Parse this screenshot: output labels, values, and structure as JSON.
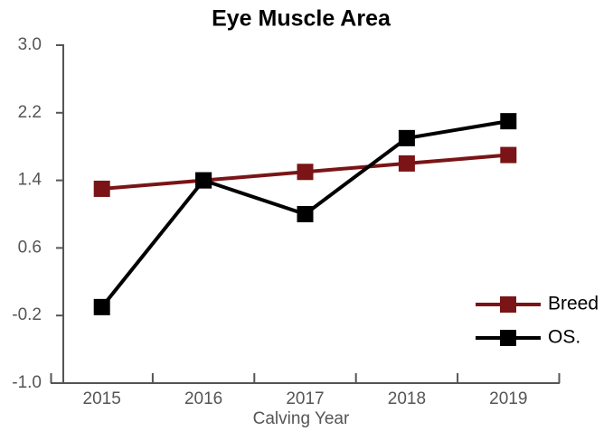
{
  "chart_data": {
    "type": "line",
    "title": "Eye Muscle Area",
    "xlabel": "Calving Year",
    "categories": [
      "2015",
      "2016",
      "2017",
      "2018",
      "2019"
    ],
    "series": [
      {
        "name": "Breed",
        "color": "#7a1416",
        "values": [
          1.3,
          1.4,
          1.5,
          1.6,
          1.7
        ]
      },
      {
        "name": "OS.",
        "color": "#000000",
        "values": [
          -0.1,
          1.4,
          1.0,
          1.9,
          2.1
        ]
      }
    ],
    "ylim": [
      -1.0,
      3.0
    ],
    "yticks": [
      {
        "value": -1.0,
        "label": "-1.0"
      },
      -0.2,
      0.6,
      1.4,
      2.2,
      {
        "value": 3.0,
        "label": "3.0"
      }
    ],
    "legend": "lower right"
  }
}
